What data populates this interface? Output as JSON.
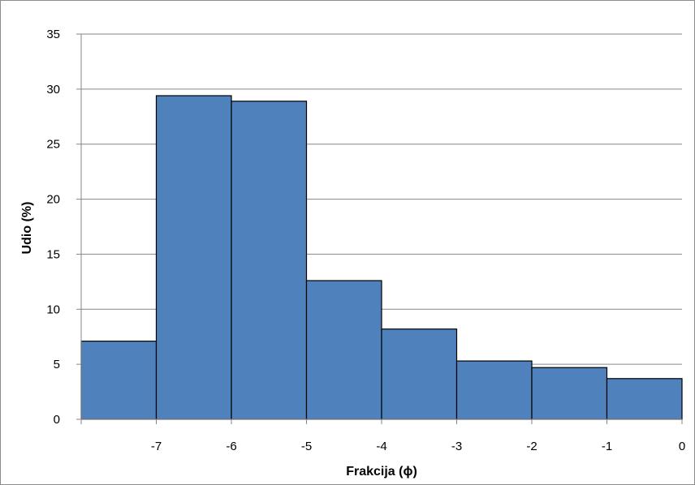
{
  "chart_data": {
    "type": "bar",
    "title": "",
    "xlabel": "Frakcija (ϕ)",
    "ylabel": "Udio (%)",
    "bins": [
      {
        "from": -8,
        "to": -7,
        "value": 7.1
      },
      {
        "from": -7,
        "to": -6,
        "value": 29.4
      },
      {
        "from": -6,
        "to": -5,
        "value": 28.9
      },
      {
        "from": -5,
        "to": -4,
        "value": 12.6
      },
      {
        "from": -4,
        "to": -3,
        "value": 8.2
      },
      {
        "from": -3,
        "to": -2,
        "value": 5.3
      },
      {
        "from": -2,
        "to": -1,
        "value": 4.7
      },
      {
        "from": -1,
        "to": 0,
        "value": 3.7
      }
    ],
    "xlim": [
      -8,
      0
    ],
    "ylim": [
      0,
      35
    ],
    "x_ticks": [
      -7,
      -6,
      -5,
      -4,
      -3,
      -2,
      -1,
      0
    ],
    "x_tick_labels": [
      "-7",
      "-6",
      "-5",
      "-4",
      "-3",
      "-2",
      "-1",
      "0"
    ],
    "y_ticks": [
      0,
      5,
      10,
      15,
      20,
      25,
      30,
      35
    ],
    "y_tick_labels": [
      "0",
      "5",
      "10",
      "15",
      "20",
      "25",
      "30",
      "35"
    ],
    "grid": "horizontal",
    "legend": "none",
    "bar_color": "#4f81bd",
    "edge_color": "#000000"
  }
}
